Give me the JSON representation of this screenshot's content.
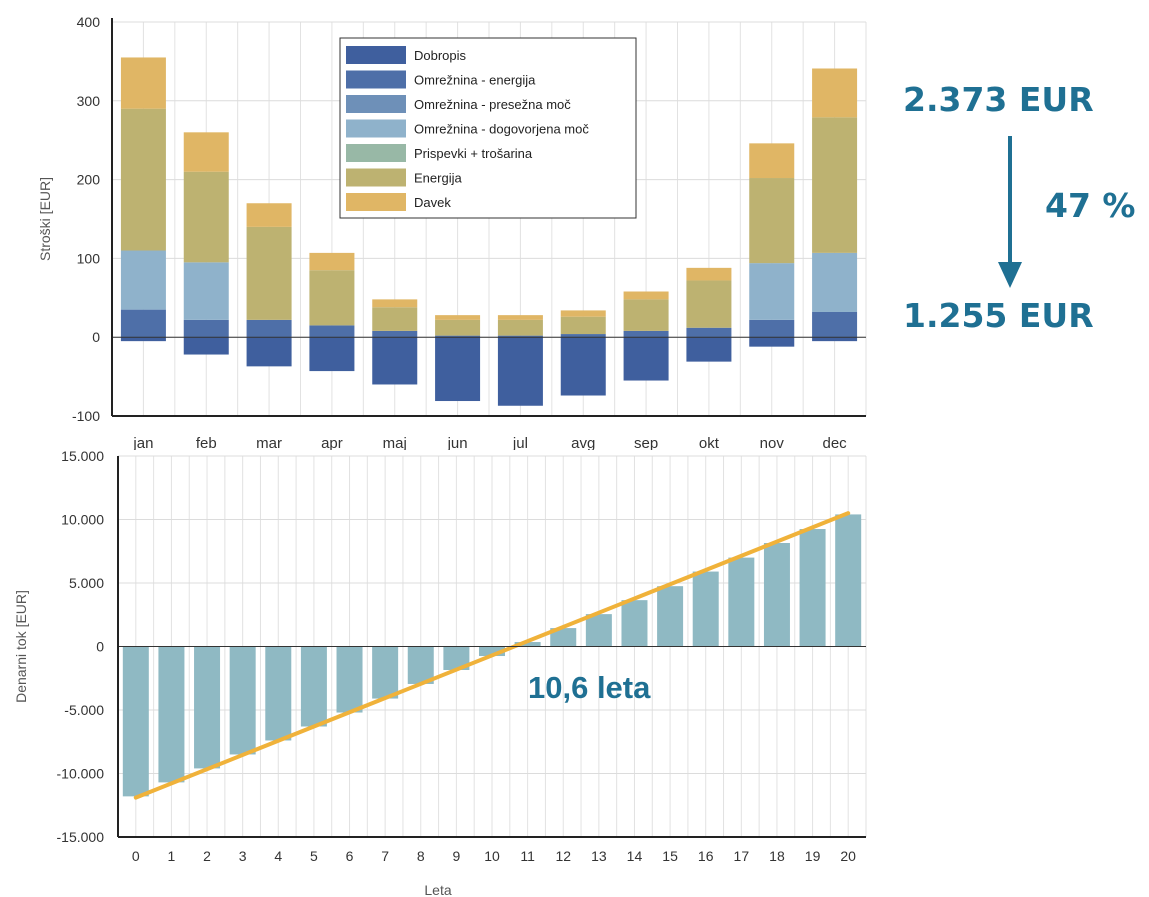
{
  "chart_data": [
    {
      "type": "bar",
      "stacked": true,
      "ylabel": "Stroški [EUR]",
      "ylim": [
        -100,
        400
      ],
      "y_ticks": [
        -100,
        0,
        100,
        200,
        300,
        400
      ],
      "grid": true,
      "legend_position": "top-center",
      "categories": [
        "jan",
        "feb",
        "mar",
        "apr",
        "maj",
        "jun",
        "jul",
        "avg",
        "sep",
        "okt",
        "nov",
        "dec"
      ],
      "series": [
        {
          "name": "Dobropis",
          "color": "#3f5f9e",
          "values": [
            -5,
            -22,
            -37,
            -43,
            -60,
            -81,
            -87,
            -74,
            -55,
            -31,
            -12,
            -5
          ]
        },
        {
          "name": "Omrežnina - energija",
          "color": "#4e6fa8",
          "values": [
            35,
            22,
            22,
            15,
            8,
            2,
            2,
            4,
            8,
            12,
            22,
            32
          ]
        },
        {
          "name": "Omrežnina - presežna moč",
          "color": "#6e90b8",
          "values": [
            0,
            0,
            0,
            0,
            0,
            0,
            0,
            0,
            0,
            0,
            0,
            0
          ]
        },
        {
          "name": "Omrežnina - dogovorjena moč",
          "color": "#8fb2cb",
          "values": [
            75,
            73,
            0,
            0,
            0,
            0,
            0,
            0,
            0,
            0,
            72,
            75
          ]
        },
        {
          "name": "Prispevki + trošarina",
          "color": "#98b8a6",
          "values": [
            0,
            0,
            0,
            0,
            0,
            0,
            0,
            0,
            0,
            0,
            0,
            0
          ]
        },
        {
          "name": "Energija",
          "color": "#bdb271",
          "values": [
            180,
            115,
            118,
            70,
            30,
            20,
            20,
            22,
            40,
            60,
            108,
            172
          ]
        },
        {
          "name": "Davek",
          "color": "#e0b665",
          "values": [
            65,
            50,
            30,
            22,
            10,
            6,
            6,
            8,
            10,
            16,
            44,
            62
          ]
        }
      ]
    },
    {
      "type": "bar",
      "xlabel": "Leta",
      "ylabel": "Denarni tok [EUR]",
      "ylim": [
        -15000,
        15000
      ],
      "y_ticks": [
        -15000,
        -10000,
        -5000,
        0,
        5000,
        10000,
        15000
      ],
      "y_tick_labels": [
        "-15.000",
        "-10.000",
        "-5.000",
        "0",
        "5.000",
        "10.000",
        "15.000"
      ],
      "grid": true,
      "categories": [
        "0",
        "1",
        "2",
        "3",
        "4",
        "5",
        "6",
        "7",
        "8",
        "9",
        "10",
        "11",
        "12",
        "13",
        "14",
        "15",
        "16",
        "17",
        "18",
        "19",
        "20"
      ],
      "values": [
        -11800,
        -10700,
        -9600,
        -8500,
        -7400,
        -6300,
        -5200,
        -4100,
        -2950,
        -1850,
        -750,
        350,
        1450,
        2550,
        3650,
        4750,
        5900,
        7000,
        8150,
        9250,
        10400
      ],
      "bar_color": "#8fb9c3",
      "trend_line": {
        "color": "#f0b23a",
        "from": [
          0,
          -11900
        ],
        "to": [
          20,
          10500
        ]
      },
      "annotation": "10,6 leta"
    }
  ],
  "annotations": {
    "before": "2.373 EUR",
    "percent": "47 %",
    "after": "1.255 EUR",
    "color": "#1f7093"
  }
}
